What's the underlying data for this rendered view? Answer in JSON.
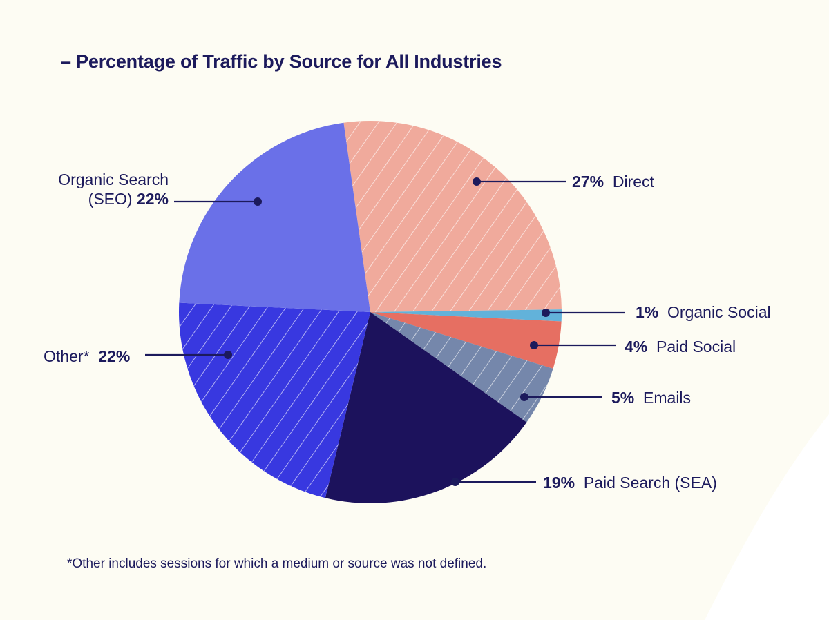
{
  "chart_data": {
    "type": "pie",
    "title": "– Percentage of Traffic by Source for All Industries",
    "footnote": "*Other includes sessions for which a medium or source was not defined.",
    "slices": [
      {
        "label": "Direct",
        "value": 27,
        "value_text": "27%",
        "color": "#f0aa9c",
        "hatched": true
      },
      {
        "label": "Organic Social",
        "value": 1,
        "value_text": "1%",
        "color": "#62b2da",
        "hatched": false
      },
      {
        "label": "Paid Social",
        "value": 4,
        "value_text": "4%",
        "color": "#e66f62",
        "hatched": false
      },
      {
        "label": "Emails",
        "value": 5,
        "value_text": "5%",
        "color": "#7587ab",
        "hatched": true
      },
      {
        "label": "Paid Search (SEA)",
        "value": 19,
        "value_text": "19%",
        "color": "#1c125c",
        "hatched": false
      },
      {
        "label": "Other*",
        "value": 22,
        "value_text": "22%",
        "color": "#3838e0",
        "hatched": true
      },
      {
        "label": "Organic Search (SEO)",
        "value": 22,
        "value_text": "22%",
        "color": "#6a70e8",
        "hatched": false
      }
    ]
  },
  "labels": {
    "direct": {
      "value": "27%",
      "name": "Direct"
    },
    "organic_social": {
      "value": "1%",
      "name": "Organic Social"
    },
    "paid_social": {
      "value": "4%",
      "name": "Paid Social"
    },
    "emails": {
      "value": "5%",
      "name": "Emails"
    },
    "paid_search": {
      "value": "19%",
      "name": "Paid Search (SEA)"
    },
    "other": {
      "value": "22%",
      "name": "Other*"
    },
    "organic_search": {
      "name_line1": "Organic Search",
      "name_line2": "(SEO)",
      "value": "22%"
    }
  },
  "colors": {
    "background": "#fdfcf3",
    "text": "#1c1a5c"
  }
}
